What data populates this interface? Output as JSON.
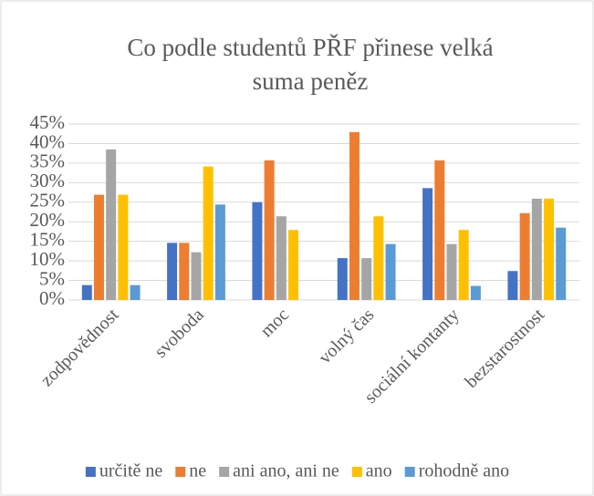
{
  "chart_data": {
    "type": "bar",
    "title": [
      "Co podle studentů PŘF přinese velká",
      "suma peněz"
    ],
    "categories": [
      "zodpovědnost",
      "svoboda",
      "moc",
      "volný čas",
      "sociální kontanty",
      "bezstarostnost"
    ],
    "series": [
      {
        "name": "určitě ne",
        "color": "#4472c4",
        "values": [
          3.8,
          14.6,
          25.0,
          10.7,
          28.6,
          7.4
        ]
      },
      {
        "name": "ne",
        "color": "#ed7d31",
        "values": [
          26.9,
          14.6,
          35.7,
          42.9,
          35.7,
          22.2
        ]
      },
      {
        "name": "ani ano, ani ne",
        "color": "#a5a5a5",
        "values": [
          38.5,
          12.2,
          21.4,
          10.7,
          14.3,
          25.9
        ]
      },
      {
        "name": "ano",
        "color": "#ffc000",
        "values": [
          26.9,
          34.1,
          17.9,
          21.4,
          17.9,
          25.9
        ]
      },
      {
        "name": "rohodně ano",
        "color": "#5b9bd5",
        "values": [
          3.8,
          24.4,
          0,
          14.3,
          3.6,
          18.5
        ]
      }
    ],
    "ylim": [
      0,
      45
    ],
    "yticks": [
      {
        "value": 0,
        "label": "0%"
      },
      {
        "value": 5,
        "label": "5%"
      },
      {
        "value": 10,
        "label": "10%"
      },
      {
        "value": 15,
        "label": "15%"
      },
      {
        "value": 20,
        "label": "20%"
      },
      {
        "value": 25,
        "label": "25%"
      },
      {
        "value": 30,
        "label": "30%"
      },
      {
        "value": 35,
        "label": "35%"
      },
      {
        "value": 40,
        "label": "40%"
      },
      {
        "value": 45,
        "label": "45%"
      }
    ],
    "grid": true,
    "legend": "bottom"
  }
}
